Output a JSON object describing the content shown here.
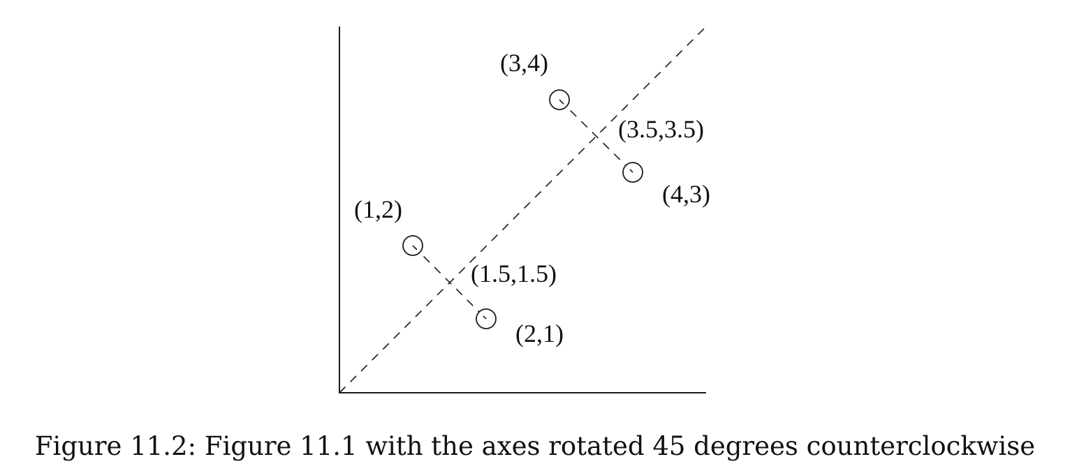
{
  "figure": {
    "caption": "Figure 11.2: Figure 11.1 with the axes rotated 45 degrees counterclockwise",
    "points": [
      {
        "id": "p12",
        "label": "(1,2)",
        "x": 1,
        "y": 2
      },
      {
        "id": "p21",
        "label": "(2,1)",
        "x": 2,
        "y": 1
      },
      {
        "id": "p34",
        "label": "(3,4)",
        "x": 3,
        "y": 4
      },
      {
        "id": "p43",
        "label": "(4,3)",
        "x": 4,
        "y": 3
      }
    ],
    "projections": [
      {
        "id": "proj1",
        "label": "(1.5,1.5)",
        "x": 1.5,
        "y": 1.5
      },
      {
        "id": "proj2",
        "label": "(3.5,3.5)",
        "x": 3.5,
        "y": 3.5
      }
    ],
    "rotated_axis": {
      "style": "dashed",
      "angle_degrees": 45
    }
  }
}
